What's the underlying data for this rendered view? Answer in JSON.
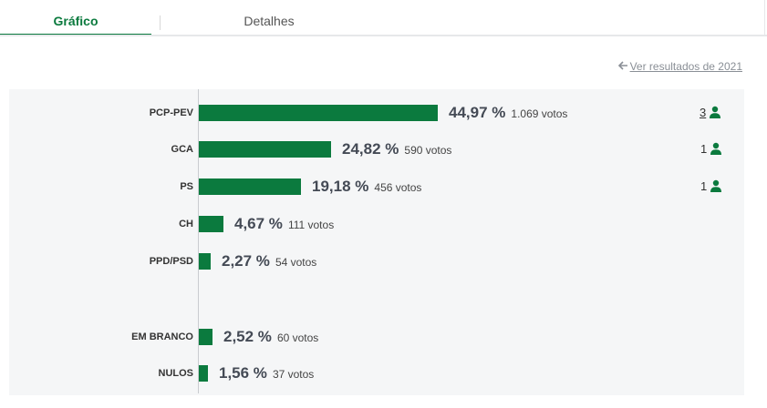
{
  "tabs": [
    {
      "label": "Gráfico",
      "active": true
    },
    {
      "label": "Detalhes",
      "active": false
    }
  ],
  "previous_results_link": "Ver resultados de 2021",
  "accent_color": "#0b7a3e",
  "rows": [
    {
      "party": "PCP-PEV",
      "percent": 44.97,
      "percent_label": "44,97 %",
      "votes": "1.069 votos",
      "seats": "3"
    },
    {
      "party": "GCA",
      "percent": 24.82,
      "percent_label": "24,82 %",
      "votes": "590 votos",
      "seats": "1"
    },
    {
      "party": "PS",
      "percent": 19.18,
      "percent_label": "19,18 %",
      "votes": "456 votos",
      "seats": "1"
    },
    {
      "party": "CH",
      "percent": 4.67,
      "percent_label": "4,67 %",
      "votes": "111 votos",
      "seats": ""
    },
    {
      "party": "PPD/PSD",
      "percent": 2.27,
      "percent_label": "2,27 %",
      "votes": "54 votos",
      "seats": ""
    },
    {
      "party": "EM BRANCO",
      "percent": 2.52,
      "percent_label": "2,52 %",
      "votes": "60 votos",
      "seats": ""
    },
    {
      "party": "NULOS",
      "percent": 1.56,
      "percent_label": "1,56 %",
      "votes": "37 votos",
      "seats": ""
    }
  ],
  "chart_data": {
    "type": "bar",
    "categories": [
      "PCP-PEV",
      "GCA",
      "PS",
      "CH",
      "PPD/PSD",
      "EM BRANCO",
      "NULOS"
    ],
    "values": [
      44.97,
      24.82,
      19.18,
      4.67,
      2.27,
      2.52,
      1.56
    ],
    "votes": [
      1069,
      590,
      456,
      111,
      54,
      60,
      37
    ],
    "seats": [
      3,
      1,
      1,
      0,
      0,
      0,
      0
    ],
    "unit": "%",
    "orientation": "horizontal",
    "grid": false
  }
}
